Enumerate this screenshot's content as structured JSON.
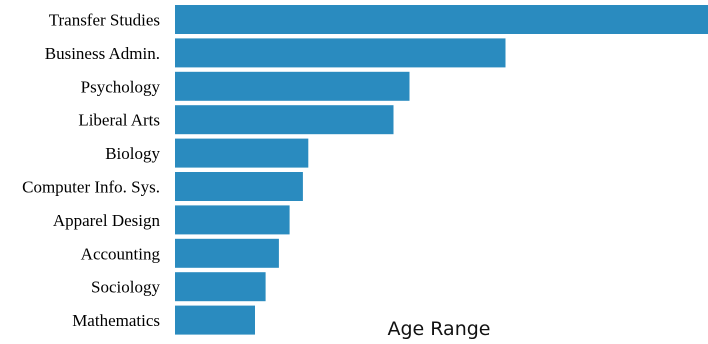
{
  "chart_data": {
    "type": "bar",
    "orientation": "horizontal",
    "categories": [
      "Transfer Studies",
      "Business Admin.",
      "Psychology",
      "Liberal Arts",
      "Biology",
      "Computer Info. Sys.",
      "Apparel Design",
      "Accounting",
      "Sociology",
      "Mathematics"
    ],
    "values": [
      100,
      62,
      44,
      41,
      25,
      24,
      21.5,
      19.5,
      17,
      15
    ],
    "xlabel": "Age Range",
    "xlim": [
      0,
      100
    ],
    "grid": false,
    "legend": "none",
    "bar_color": "#2a8bbf"
  }
}
